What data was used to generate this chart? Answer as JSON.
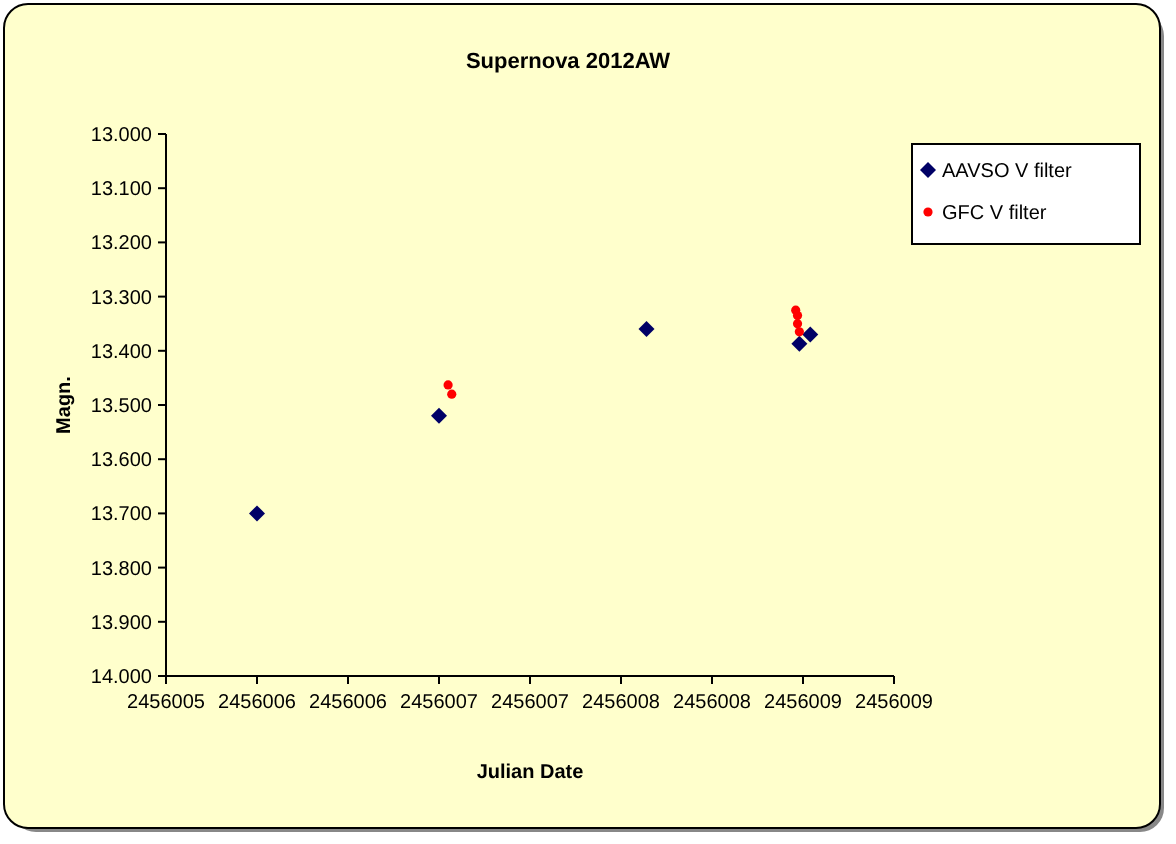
{
  "chart_data": {
    "type": "scatter",
    "title": "Supernova 2012AW",
    "xlabel": "Julian Date",
    "ylabel": "Magn.",
    "xlim": [
      2456005,
      2456009
    ],
    "xticks": [
      {
        "value": 2456005,
        "label": "2456005"
      },
      {
        "value": 2456005.5,
        "label": "2456006"
      },
      {
        "value": 2456006,
        "label": "2456006"
      },
      {
        "value": 2456006.5,
        "label": "2456007"
      },
      {
        "value": 2456007,
        "label": "2456007"
      },
      {
        "value": 2456007.5,
        "label": "2456008"
      },
      {
        "value": 2456008,
        "label": "2456008"
      },
      {
        "value": 2456008.5,
        "label": "2456009"
      },
      {
        "value": 2456009,
        "label": "2456009"
      }
    ],
    "ylim": [
      14,
      13
    ],
    "yticks": [
      {
        "value": 13,
        "label": "13.000"
      },
      {
        "value": 13.1,
        "label": "13.100"
      },
      {
        "value": 13.2,
        "label": "13.200"
      },
      {
        "value": 13.3,
        "label": "13.300"
      },
      {
        "value": 13.4,
        "label": "13.400"
      },
      {
        "value": 13.5,
        "label": "13.500"
      },
      {
        "value": 13.6,
        "label": "13.600"
      },
      {
        "value": 13.7,
        "label": "13.700"
      },
      {
        "value": 13.8,
        "label": "13.800"
      },
      {
        "value": 13.9,
        "label": "13.900"
      },
      {
        "value": 14,
        "label": "14.000"
      }
    ],
    "grid": false,
    "legend": "top right",
    "series": [
      {
        "name": "AAVSO V filter",
        "color": "#000066",
        "marker": "diamond",
        "x": [
          2456005.5,
          2456006.5,
          2456007.64,
          2456008.48,
          2456008.54
        ],
        "values": [
          13.7,
          13.52,
          13.36,
          13.387,
          13.37
        ]
      },
      {
        "name": "GFC V filter",
        "color": "#ff0000",
        "marker": "circle",
        "x": [
          2456006.55,
          2456006.57,
          2456008.46,
          2456008.47,
          2456008.47,
          2456008.48
        ],
        "values": [
          13.463,
          13.48,
          13.325,
          13.335,
          13.35,
          13.365
        ]
      }
    ]
  }
}
